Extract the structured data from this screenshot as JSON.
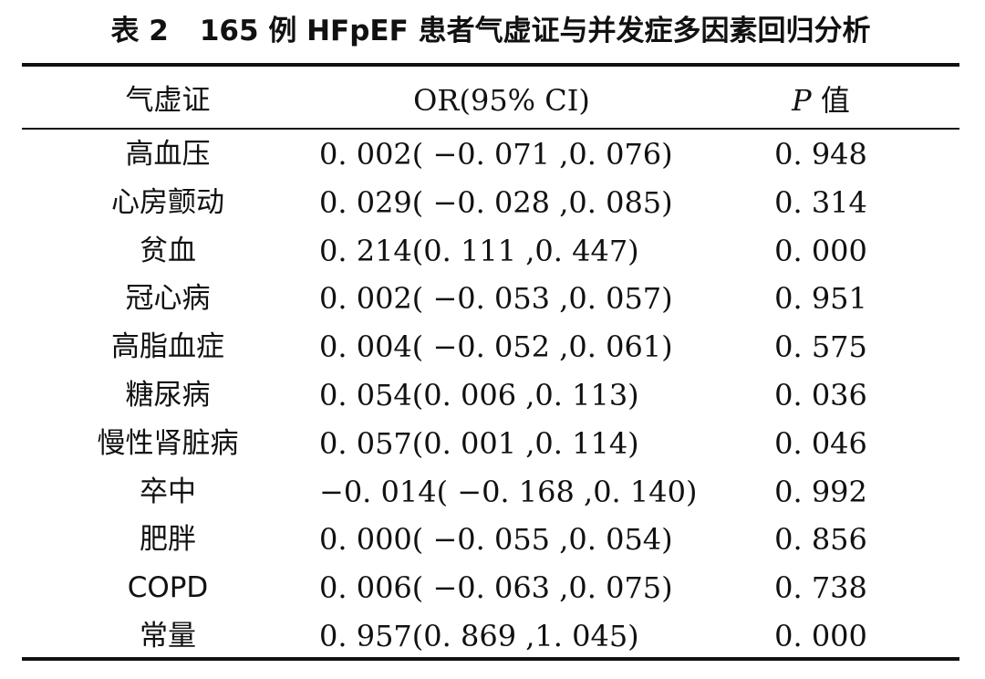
{
  "caption": {
    "label": "表 2",
    "title": "165 例 HFpEF 患者气虚证与并发症多因素回归分析"
  },
  "headers": {
    "col1": "气虚证",
    "col2": "OR(95% CI)",
    "col3_italic": "P",
    "col3_rest": " 值"
  },
  "rows": [
    {
      "name": "高血压",
      "or_ci": "0. 002( −0. 071 ,0. 076)",
      "p": "0. 948"
    },
    {
      "name": "心房颤动",
      "or_ci": "0. 029( −0. 028 ,0. 085)",
      "p": "0. 314"
    },
    {
      "name": "贫血",
      "or_ci": "0. 214(0. 111 ,0. 447)",
      "p": "0. 000"
    },
    {
      "name": "冠心病",
      "or_ci": "0. 002( −0. 053 ,0. 057)",
      "p": "0. 951"
    },
    {
      "name": "高脂血症",
      "or_ci": "0. 004( −0. 052 ,0. 061)",
      "p": "0. 575"
    },
    {
      "name": "糖尿病",
      "or_ci": "0. 054(0. 006 ,0. 113)",
      "p": "0. 036"
    },
    {
      "name": "慢性肾脏病",
      "or_ci": "0. 057(0. 001 ,0. 114)",
      "p": "0. 046"
    },
    {
      "name": "卒中",
      "or_ci": "−0. 014( −0. 168 ,0. 140)",
      "p": "0. 992"
    },
    {
      "name": "肥胖",
      "or_ci": "0. 000( −0. 055 ,0. 054)",
      "p": "0. 856"
    },
    {
      "name": "COPD",
      "or_ci": "0. 006( −0. 063 ,0. 075)",
      "p": "0. 738"
    },
    {
      "name": "常量",
      "or_ci": "0. 957(0. 869 ,1. 045)",
      "p": "0. 000"
    }
  ]
}
